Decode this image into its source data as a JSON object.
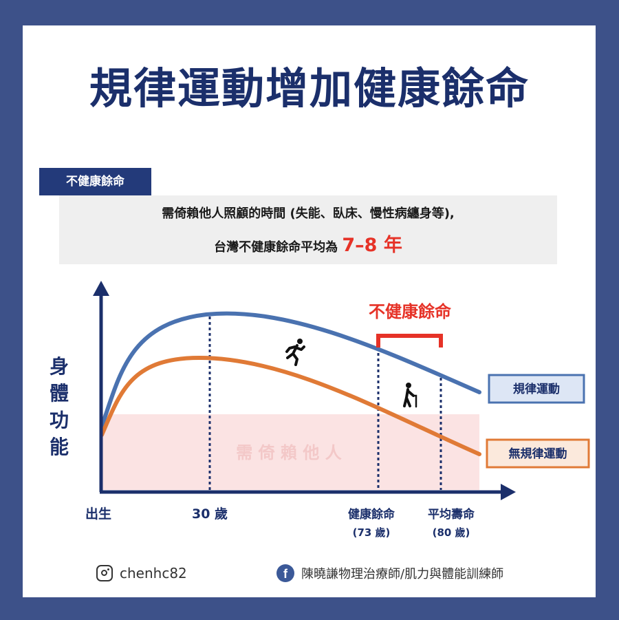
{
  "title": "規律運動增加健康餘命",
  "definition": {
    "tag": "不健康餘命",
    "line1": "需倚賴他人照顧的時間 (失能、臥床、慢性病纏身等),",
    "line2_prefix": "台灣不健康餘命平均為 ",
    "line2_highlight": "7–8 年"
  },
  "chart_data": {
    "type": "line",
    "ylabel": "身體功能",
    "x_ticks": [
      {
        "label": "出生",
        "sub": ""
      },
      {
        "label": "30 歲",
        "sub": ""
      },
      {
        "label": "健康餘命",
        "sub": "(73 歲)"
      },
      {
        "label": "平均壽命",
        "sub": "(80 歲)"
      }
    ],
    "series": [
      {
        "name": "規律運動",
        "color": "#4a72b0",
        "legend_bg": "#dde6f5"
      },
      {
        "name": "無規律運動",
        "color": "#e07a36",
        "legend_bg": "#fbe9dc"
      }
    ],
    "dependency_zone_label": "需 倚 賴 他 人",
    "dependency_zone_color": "#fbe3e3",
    "bracket_label": "不健康餘命",
    "bracket_color": "#e63227",
    "icons": [
      "running-person-icon",
      "elderly-with-cane-icon"
    ]
  },
  "footer": {
    "instagram": "chenhc82",
    "facebook": "陳曉謙物理治療師/肌力與體能訓練師",
    "facebook_icon_letter": "f"
  }
}
